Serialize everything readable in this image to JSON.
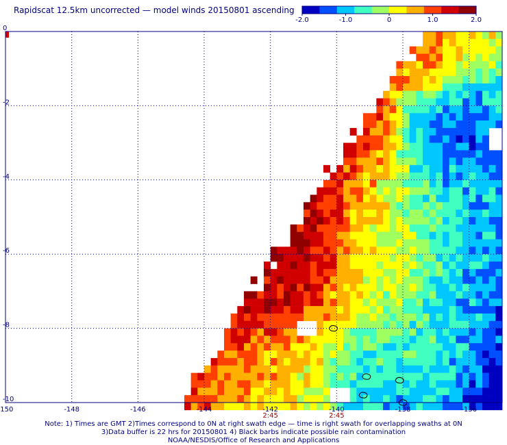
{
  "header": {
    "title": "Rapidscat 12.5km uncorrected — model winds 20150801 ascending"
  },
  "colorbar": {
    "ticks": [
      "-2.0",
      "-1.0",
      "0",
      "1.0",
      "2.0"
    ],
    "colors": [
      "#0000c0",
      "#0050ff",
      "#00c8ff",
      "#40ffc0",
      "#a0ff60",
      "#ffff00",
      "#ffb000",
      "#ff4000",
      "#d00000",
      "#900000"
    ]
  },
  "chart_data": {
    "type": "heatmap",
    "title": "Rapidscat 12.5km uncorrected — model winds 20150801 ascending",
    "xlabel": "",
    "ylabel": "",
    "x_ticks": [
      "-150",
      "-148",
      "-146",
      "-144",
      "-142",
      "-140",
      "-138",
      "-136"
    ],
    "y_ticks": [
      "0",
      "-2",
      "-4",
      "-6",
      "-8",
      "-10"
    ],
    "xlim": [
      -150,
      -135
    ],
    "ylim": [
      -10,
      0
    ],
    "value_range": [
      -2.0,
      2.0
    ],
    "grid": true,
    "time_labels": [
      {
        "lon": -142,
        "text": "2:45"
      },
      {
        "lon": -140,
        "text": "2:45"
      }
    ],
    "swath_edge": [
      {
        "lat": 0,
        "lon": -137.6
      },
      {
        "lat": -10,
        "lon": -144.9
      }
    ],
    "regions": [
      {
        "lon": -141.3,
        "lat": -6.2,
        "value": 1.9,
        "radius": 1.4
      },
      {
        "lon": -142.5,
        "lat": -7.3,
        "value": 1.6,
        "radius": 0.9
      },
      {
        "lon": -140.8,
        "lat": -4.3,
        "value": 1.5,
        "radius": 0.9
      },
      {
        "lon": -139.4,
        "lat": -2.4,
        "value": 1.4,
        "radius": 0.8
      },
      {
        "lon": -137.3,
        "lat": -0.8,
        "value": 0.8,
        "radius": 0.7
      },
      {
        "lon": -136.6,
        "lat": -2.5,
        "value": -1.8,
        "radius": 1.3
      },
      {
        "lon": -136.2,
        "lat": -5.2,
        "value": -0.9,
        "radius": 1.4
      },
      {
        "lon": -135.8,
        "lat": -7.5,
        "value": -1.0,
        "radius": 1.4
      },
      {
        "lon": -137.2,
        "lat": -9.0,
        "value": -0.3,
        "radius": 1.5
      },
      {
        "lon": -139.4,
        "lat": -9.6,
        "value": -0.7,
        "radius": 0.9
      },
      {
        "lon": -141.6,
        "lat": -9.3,
        "value": 0.6,
        "radius": 1.3
      },
      {
        "lon": -143.8,
        "lat": -9.3,
        "value": 1.0,
        "radius": 1.0
      },
      {
        "lon": -138.5,
        "lat": -6.5,
        "value": 0.2,
        "radius": 1.6
      }
    ],
    "missing_cells": [
      {
        "lon": -141.1,
        "lat": -7.9
      },
      {
        "lon": -140.0,
        "lat": -9.7
      },
      {
        "lon": -135.3,
        "lat": -2.8
      }
    ],
    "islands": [
      {
        "lon": -139.1,
        "lat": -9.3
      },
      {
        "lon": -138.1,
        "lat": -9.4
      },
      {
        "lon": -139.2,
        "lat": -9.8
      },
      {
        "lon": -138.0,
        "lat": -10.0
      },
      {
        "lon": -140.1,
        "lat": -8.0
      }
    ]
  },
  "footer": {
    "note_line1": "Note: 1) Times are GMT 2)Times correspond to 0N at right swath edge — time is right swath for overlapping swaths at 0N",
    "note_line2": "3)Data buffer is 22 hrs for 20150801 4) Black barbs indicate possible rain contamination",
    "note_line3": "NOAA/NESDIS/Office of Research and Applications"
  }
}
